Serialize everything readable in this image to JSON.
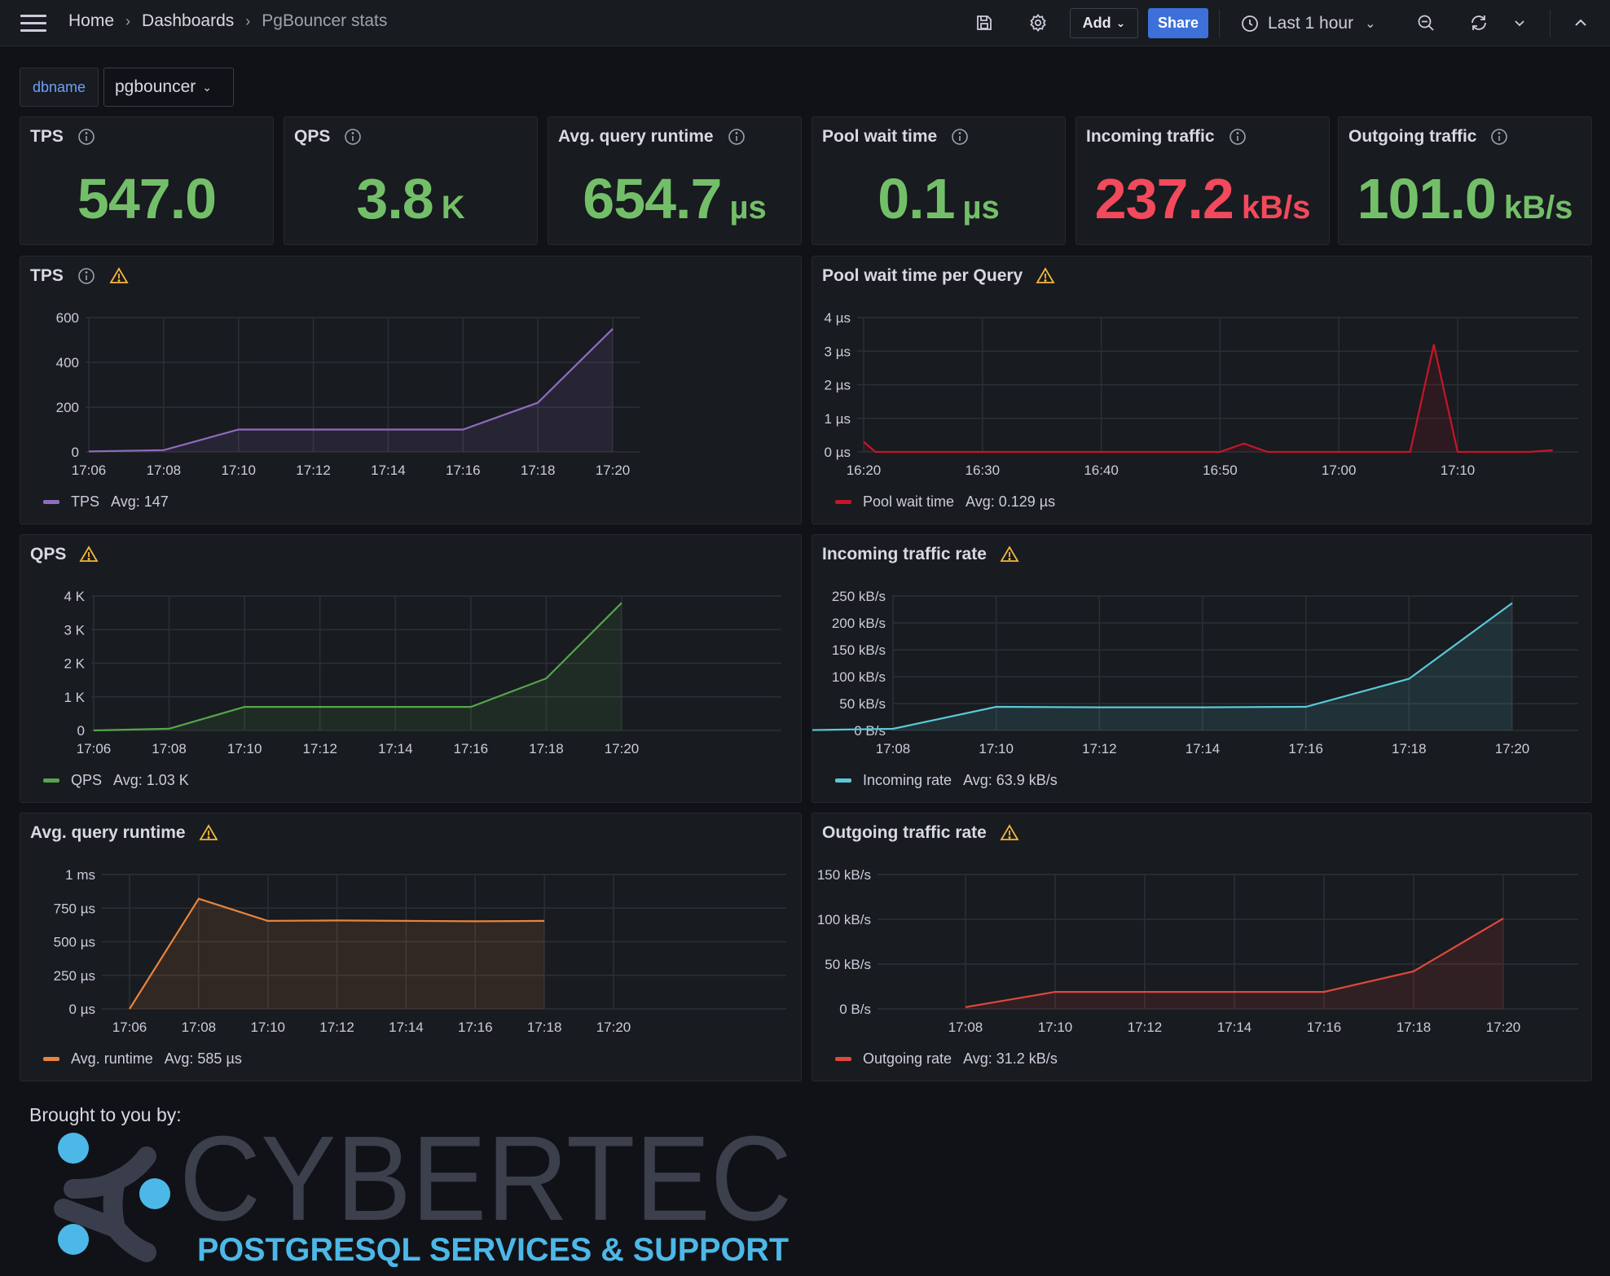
{
  "breadcrumb": {
    "home": "Home",
    "dashboards": "Dashboards",
    "current": "PgBouncer stats"
  },
  "toolbar": {
    "add_label": "Add",
    "share_label": "Share",
    "time_range": "Last 1 hour"
  },
  "variable": {
    "label": "dbname",
    "value": "pgbouncer"
  },
  "stats": [
    {
      "title": "TPS",
      "value": "547.0",
      "unit": "",
      "color": "#73bf69"
    },
    {
      "title": "QPS",
      "value": "3.8",
      "unit": "K",
      "color": "#73bf69"
    },
    {
      "title": "Avg. query runtime",
      "value": "654.7",
      "unit": "µs",
      "color": "#73bf69"
    },
    {
      "title": "Pool wait time",
      "value": "0.1",
      "unit": "µs",
      "color": "#73bf69"
    },
    {
      "title": "Incoming traffic",
      "value": "237.2",
      "unit": "kB/s",
      "color": "#f2495c"
    },
    {
      "title": "Outgoing traffic",
      "value": "101.0",
      "unit": "kB/s",
      "color": "#73bf69"
    }
  ],
  "panels": {
    "tps": {
      "title": "TPS",
      "legend_name": "TPS",
      "legend_avg": "Avg: 147"
    },
    "pool": {
      "title": "Pool wait time per Query",
      "legend_name": "Pool wait time",
      "legend_avg": "Avg: 0.129 µs"
    },
    "qps": {
      "title": "QPS",
      "legend_name": "QPS",
      "legend_avg": "Avg: 1.03 K"
    },
    "incoming": {
      "title": "Incoming traffic rate",
      "legend_name": "Incoming rate",
      "legend_avg": "Avg: 63.9 kB/s"
    },
    "runtime": {
      "title": "Avg. query runtime",
      "legend_name": "Avg. runtime",
      "legend_avg": "Avg: 585 µs"
    },
    "outgoing": {
      "title": "Outgoing traffic rate",
      "legend_name": "Outgoing rate",
      "legend_avg": "Avg: 31.2 kB/s"
    }
  },
  "footer": {
    "brought_by": "Brought to you by:",
    "logo_text": "CYBERTEC",
    "logo_tagline": "POSTGRESQL SERVICES & SUPPORT"
  },
  "chart_data": [
    {
      "id": "tps",
      "type": "area",
      "title": "TPS",
      "color": "#8f6bbf",
      "series": [
        {
          "name": "TPS",
          "x": [
            "17:06",
            "17:08",
            "17:10",
            "17:12",
            "17:14",
            "17:16",
            "17:18",
            "17:20"
          ],
          "values": [
            2,
            8,
            100,
            100,
            100,
            100,
            220,
            550
          ]
        }
      ],
      "xticks": [
        "17:06",
        "17:08",
        "17:10",
        "17:12",
        "17:14",
        "17:16",
        "17:18",
        "17:20"
      ],
      "yticks": [
        "0",
        "200",
        "400",
        "600"
      ],
      "ylim": [
        0,
        600
      ]
    },
    {
      "id": "pool",
      "type": "area",
      "title": "Pool wait time per Query",
      "color": "#c4162a",
      "series": [
        {
          "name": "Pool wait time",
          "x": [
            "16:20",
            "16:21",
            "16:30",
            "16:40",
            "16:50",
            "16:52",
            "16:54",
            "16:56",
            "17:00",
            "17:06",
            "17:08",
            "17:10",
            "17:16",
            "17:18"
          ],
          "values": [
            0.3,
            0,
            0,
            0,
            0,
            0.25,
            0,
            0,
            0,
            0,
            3.2,
            0,
            0,
            0.05
          ]
        }
      ],
      "xticks": [
        "16:20",
        "16:30",
        "16:40",
        "16:50",
        "17:00",
        "17:10"
      ],
      "yticks": [
        "0 µs",
        "1 µs",
        "2 µs",
        "3 µs",
        "4 µs"
      ],
      "ylim": [
        0,
        4
      ]
    },
    {
      "id": "qps",
      "type": "area",
      "title": "QPS",
      "color": "#56a64b",
      "series": [
        {
          "name": "QPS",
          "x": [
            "17:06",
            "17:08",
            "17:10",
            "17:12",
            "17:14",
            "17:16",
            "17:18",
            "17:20"
          ],
          "values": [
            0,
            50,
            700,
            700,
            700,
            700,
            1550,
            3800
          ]
        }
      ],
      "xticks": [
        "17:06",
        "17:08",
        "17:10",
        "17:12",
        "17:14",
        "17:16",
        "17:18",
        "17:20"
      ],
      "yticks": [
        "0",
        "1 K",
        "2 K",
        "3 K",
        "4 K"
      ],
      "ylim": [
        0,
        4000
      ]
    },
    {
      "id": "incoming",
      "type": "area",
      "title": "Incoming traffic rate",
      "color": "#5ac8d8",
      "series": [
        {
          "name": "Incoming rate",
          "x": [
            "17:06",
            "17:08",
            "17:10",
            "17:12",
            "17:14",
            "17:16",
            "17:18",
            "17:20"
          ],
          "values": [
            0,
            3,
            44,
            43,
            43,
            44,
            96,
            237
          ]
        }
      ],
      "xticks": [
        "17:08",
        "17:10",
        "17:12",
        "17:14",
        "17:16",
        "17:18",
        "17:20"
      ],
      "yticks": [
        "0 B/s",
        "50 kB/s",
        "100 kB/s",
        "150 kB/s",
        "200 kB/s",
        "250 kB/s"
      ],
      "ylim": [
        0,
        250
      ]
    },
    {
      "id": "runtime",
      "type": "area",
      "title": "Avg. query runtime",
      "color": "#e8843c",
      "series": [
        {
          "name": "Avg. runtime",
          "x": [
            "17:06",
            "17:08",
            "17:10",
            "17:12",
            "17:14",
            "17:16",
            "17:18"
          ],
          "values": [
            0,
            820,
            655,
            658,
            655,
            652,
            655
          ]
        }
      ],
      "xticks": [
        "17:06",
        "17:08",
        "17:10",
        "17:12",
        "17:14",
        "17:16",
        "17:18",
        "17:20"
      ],
      "yticks": [
        "0 µs",
        "250 µs",
        "500 µs",
        "750 µs",
        "1 ms"
      ],
      "ylim": [
        0,
        1000
      ]
    },
    {
      "id": "outgoing",
      "type": "area",
      "title": "Outgoing traffic rate",
      "color": "#e0483c",
      "series": [
        {
          "name": "Outgoing rate",
          "x": [
            "17:08",
            "17:10",
            "17:12",
            "17:14",
            "17:16",
            "17:18",
            "17:20"
          ],
          "values": [
            2,
            19,
            19,
            19,
            19,
            42,
            101
          ]
        }
      ],
      "xticks": [
        "17:08",
        "17:10",
        "17:12",
        "17:14",
        "17:16",
        "17:18",
        "17:20"
      ],
      "yticks": [
        "0 B/s",
        "50 kB/s",
        "100 kB/s",
        "150 kB/s"
      ],
      "ylim": [
        0,
        150
      ]
    }
  ]
}
